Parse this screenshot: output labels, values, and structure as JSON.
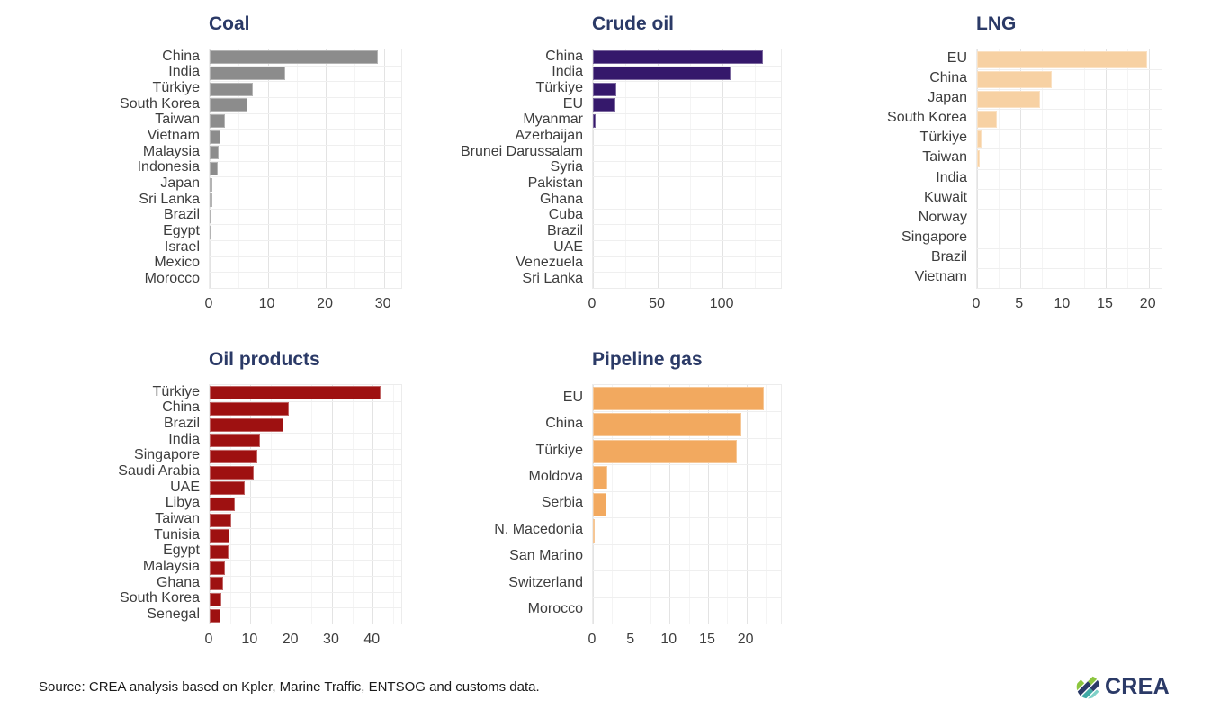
{
  "footer": {
    "source": "Source: CREA analysis based on Kpler, Marine Traffic, ENTSOG and customs data.",
    "logo_text": "CREA"
  },
  "colors": {
    "title_navy": "#2b3a67",
    "axis_text": "#3d3d3d",
    "grid_major": "#e3e3e3",
    "grid_minor": "#f4f4f4",
    "logo_navy": "#2b3a67",
    "logo_green": "#8dc63f",
    "logo_teal": "#3fa9a5"
  },
  "chart_data": [
    {
      "id": "coal",
      "type": "bar",
      "orientation": "horizontal",
      "title": "Coal",
      "bar_color": "#8c8c8c",
      "categories": [
        "China",
        "India",
        "Türkiye",
        "South Korea",
        "Taiwan",
        "Vietnam",
        "Malaysia",
        "Indonesia",
        "Japan",
        "Sri Lanka",
        "Brazil",
        "Egypt",
        "Israel",
        "Mexico",
        "Morocco"
      ],
      "values": [
        29,
        13,
        7.4,
        6.5,
        2.6,
        1.8,
        1.5,
        1.4,
        0.5,
        0.5,
        0.2,
        0.2,
        0,
        0,
        0
      ],
      "xticks": [
        0,
        10,
        20,
        30
      ],
      "xlim": [
        0,
        33
      ],
      "grid": true
    },
    {
      "id": "crude_oil",
      "type": "bar",
      "orientation": "horizontal",
      "title": "Crude oil",
      "bar_color": "#35186b",
      "categories": [
        "China",
        "India",
        "Türkiye",
        "EU",
        "Myanmar",
        "Azerbaijan",
        "Brunei Darussalam",
        "Syria",
        "Pakistan",
        "Ghana",
        "Cuba",
        "Brazil",
        "UAE",
        "Venezuela",
        "Sri Lanka"
      ],
      "values": [
        131,
        106,
        18,
        17,
        2,
        0,
        0,
        0,
        0,
        0,
        0,
        0,
        0,
        0,
        0
      ],
      "xticks": [
        0,
        50,
        100
      ],
      "xlim": [
        0,
        145
      ],
      "grid": true
    },
    {
      "id": "lng",
      "type": "bar",
      "orientation": "horizontal",
      "title": "LNG",
      "bar_color": "#f7d1a3",
      "categories": [
        "EU",
        "China",
        "Japan",
        "South Korea",
        "Türkiye",
        "Taiwan",
        "India",
        "Kuwait",
        "Norway",
        "Singapore",
        "Brazil",
        "Vietnam"
      ],
      "values": [
        19.8,
        8.7,
        7.3,
        2.3,
        0.5,
        0.3,
        0,
        0,
        0,
        0,
        0,
        0
      ],
      "xticks": [
        0,
        5,
        10,
        15,
        20
      ],
      "xlim": [
        0,
        21.5
      ],
      "grid": true
    },
    {
      "id": "oil_products",
      "type": "bar",
      "orientation": "horizontal",
      "title": "Oil products",
      "bar_color": "#9e1111",
      "categories": [
        "Türkiye",
        "China",
        "Brazil",
        "India",
        "Singapore",
        "Saudi Arabia",
        "UAE",
        "Libya",
        "Taiwan",
        "Tunisia",
        "Egypt",
        "Malaysia",
        "Ghana",
        "South Korea",
        "Senegal"
      ],
      "values": [
        42,
        19.5,
        18,
        12.4,
        11.8,
        10.8,
        8.7,
        6.2,
        5.2,
        4.9,
        4.7,
        3.8,
        3.2,
        2.8,
        2.7
      ],
      "xticks": [
        0,
        10,
        20,
        30,
        40
      ],
      "xlim": [
        0,
        47
      ],
      "grid": true
    },
    {
      "id": "pipeline_gas",
      "type": "bar",
      "orientation": "horizontal",
      "title": "Pipeline gas",
      "bar_color": "#f2a95f",
      "categories": [
        "EU",
        "China",
        "Türkiye",
        "Moldova",
        "Serbia",
        "N. Macedonia",
        "San Marino",
        "Switzerland",
        "Morocco"
      ],
      "values": [
        22.3,
        19.3,
        18.7,
        1.9,
        1.8,
        0.15,
        0,
        0,
        0
      ],
      "xticks": [
        0,
        5,
        10,
        15,
        20
      ],
      "xlim": [
        0,
        24.5
      ],
      "grid": true
    }
  ]
}
